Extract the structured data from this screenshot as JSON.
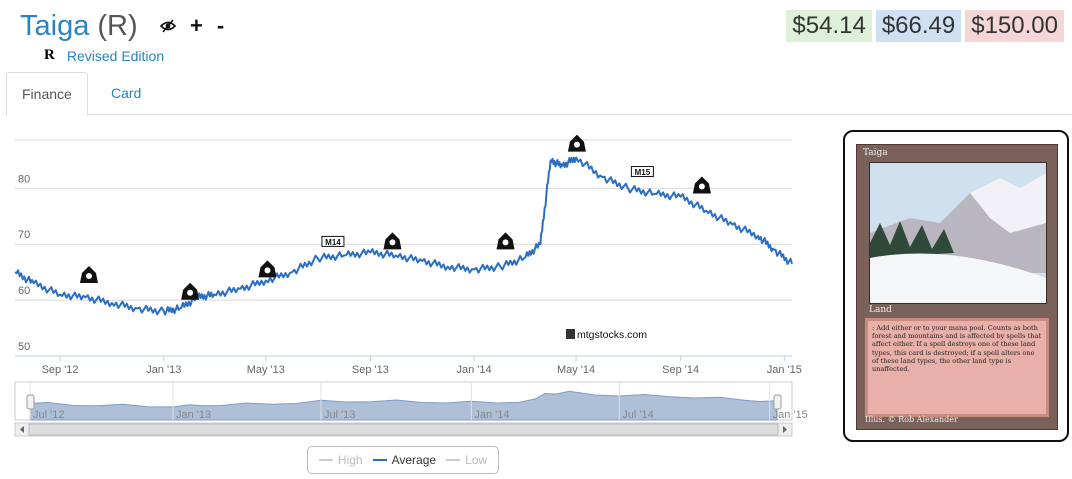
{
  "header": {
    "card_name": "Taiga",
    "rarity": "(R)",
    "set_symbol": "R",
    "set_name": "Revised Edition",
    "icons": [
      "hide-icon",
      "plus-icon",
      "minus-icon"
    ],
    "plus_label": "+",
    "minus_label": "-"
  },
  "prices": {
    "low": "$54.14",
    "average": "$66.49",
    "high": "$150.00",
    "colors": {
      "low": "#dff0d8",
      "average": "#d0e0f3",
      "high": "#f5d6d6"
    }
  },
  "tabs": [
    {
      "label": "Finance",
      "active": true
    },
    {
      "label": "Card",
      "active": false
    }
  ],
  "chart_data": {
    "type": "line",
    "series": [
      {
        "name": "Average",
        "color": "#2a6fc4",
        "x": [
          "2012-07-10",
          "2012-08-01",
          "2012-09-01",
          "2012-10-01",
          "2012-11-01",
          "2012-12-01",
          "2013-01-01",
          "2013-01-20",
          "2013-02-10",
          "2013-03-01",
          "2013-04-01",
          "2013-05-01",
          "2013-06-01",
          "2013-07-01",
          "2013-08-01",
          "2013-09-01",
          "2013-10-01",
          "2013-11-01",
          "2013-12-01",
          "2014-01-01",
          "2014-02-01",
          "2014-03-01",
          "2014-03-20",
          "2014-04-01",
          "2014-04-15",
          "2014-05-01",
          "2014-06-01",
          "2014-07-01",
          "2014-08-01",
          "2014-09-01",
          "2014-10-01",
          "2014-11-01",
          "2014-12-01",
          "2014-12-20",
          "2015-01-10"
        ],
        "values": [
          65,
          63,
          61,
          60.5,
          59.5,
          58.5,
          58,
          58.5,
          60.5,
          61,
          62,
          63.5,
          65,
          67.5,
          68,
          68.5,
          68,
          67,
          66,
          65.5,
          66,
          67.5,
          70,
          85,
          84,
          85.5,
          82,
          80,
          79,
          78.5,
          76,
          73.5,
          71.5,
          69,
          66.5
        ]
      }
    ],
    "x_tick_labels": [
      "Sep '12",
      "Jan '13",
      "May '13",
      "Sep '13",
      "Jan '14",
      "May '14",
      "Sep '14",
      "Jan '15"
    ],
    "y_tick_labels": [
      "50",
      "60",
      "70",
      "80"
    ],
    "ylim": [
      50,
      89
    ],
    "grid": true,
    "watermark": "mtgstocks.com",
    "set_release_markers": [
      {
        "date": "2012-10-05",
        "value": 64.5,
        "icon": "return-to-ravnica-icon"
      },
      {
        "date": "2013-02-01",
        "value": 61.5,
        "icon": "gatecrash-icon"
      },
      {
        "date": "2013-05-03",
        "value": 65.5,
        "icon": "dragons-maze-icon"
      },
      {
        "date": "2013-07-19",
        "value": 70.5,
        "icon": "m14-icon",
        "text": "M14"
      },
      {
        "date": "2013-09-27",
        "value": 70.5,
        "icon": "theros-icon"
      },
      {
        "date": "2014-02-07",
        "value": 70.5,
        "icon": "born-of-the-gods-icon"
      },
      {
        "date": "2014-05-02",
        "value": 88,
        "icon": "journey-into-nyx-icon"
      },
      {
        "date": "2014-07-18",
        "value": 83,
        "icon": "m15-icon",
        "text": "M15"
      },
      {
        "date": "2014-09-26",
        "value": 80.5,
        "icon": "khans-of-tarkir-icon"
      }
    ],
    "navigator": {
      "x_tick_labels": [
        "Jul '12",
        "Jan '13",
        "Jul '13",
        "Jan '14",
        "Jul '14",
        "Jan '15"
      ],
      "fill_color": "#aebfd8"
    },
    "legend": [
      {
        "name": "High",
        "enabled": false
      },
      {
        "name": "Average",
        "enabled": true
      },
      {
        "name": "Low",
        "enabled": false
      }
    ]
  },
  "card_image": {
    "name": "Taiga",
    "type_line": "Land",
    "rules_text": ": Add either  or  to your mana pool. Counts as both forest and mountains and is affected by spells that affect either. If a spell destroys one of these land types, this card is destroyed; if a spell alters one of these land types, the other land type is unaffected.",
    "illustrator": "Illus. © Rob Alexander"
  }
}
